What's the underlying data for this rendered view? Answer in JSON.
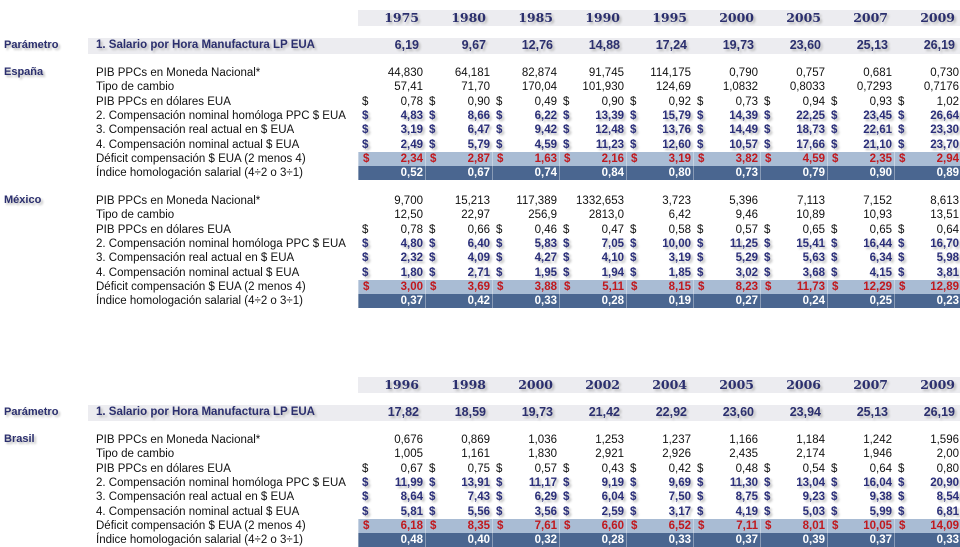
{
  "row_labels": [
    "PIB PPCs en Moneda Nacional*",
    "Tipo de cambio",
    "PIB PPCs en dólares EUA",
    "2. Compensación nominal homóloga PPC $ EUA",
    "3. Compensación real actual  en $ EUA",
    "4. Compensación nominal actual $ EUA",
    "Déficit compensación $ EUA (2 menos 4)",
    "Índice homologación salarial (4÷2 o 3÷1)"
  ],
  "currency_symbol": "$",
  "param_section": "Parámetro",
  "param_label": "1. Salario por Hora Manufactura LP EUA",
  "colors": {
    "title_blue": "#2b2f6e",
    "deficit_red": "#c0191e",
    "deficit_band": "#a9bcd4",
    "index_band": "#4a6690",
    "header_band": "#ececf0"
  },
  "tables": [
    {
      "years": [
        "1975",
        "1980",
        "1985",
        "1990",
        "1995",
        "2000",
        "2005",
        "2007",
        "2009"
      ],
      "salary": [
        "6,19",
        "9,67",
        "12,76",
        "14,88",
        "17,24",
        "19,73",
        "23,60",
        "25,13",
        "26,19"
      ],
      "countries": [
        {
          "name": "España",
          "rows": [
            [
              "44,830",
              "64,181",
              "82,874",
              "91,745",
              "114,175",
              "0,790",
              "0,757",
              "0,681",
              "0,730"
            ],
            [
              "57,41",
              "71,70",
              "170,04",
              "101,930",
              "124,69",
              "1,0832",
              "0,8033",
              "0,7293",
              "0,7176"
            ],
            [
              "0,78",
              "0,90",
              "0,49",
              "0,90",
              "0,92",
              "0,73",
              "0,94",
              "0,93",
              "1,02"
            ],
            [
              "4,83",
              "8,66",
              "6,22",
              "13,39",
              "15,79",
              "14,39",
              "22,25",
              "23,45",
              "26,64"
            ],
            [
              "3,19",
              "6,47",
              "9,42",
              "12,48",
              "13,76",
              "14,49",
              "18,73",
              "22,61",
              "23,30"
            ],
            [
              "2,49",
              "5,79",
              "4,59",
              "11,23",
              "12,60",
              "10,57",
              "17,66",
              "21,10",
              "23,70"
            ],
            [
              "2,34",
              "2,87",
              "1,63",
              "2,16",
              "3,19",
              "3,82",
              "4,59",
              "2,35",
              "2,94"
            ],
            [
              "0,52",
              "0,67",
              "0,74",
              "0,84",
              "0,80",
              "0,73",
              "0,79",
              "0,90",
              "0,89"
            ]
          ]
        },
        {
          "name": "México",
          "rows": [
            [
              "9,700",
              "15,213",
              "117,389",
              "1332,653",
              "3,723",
              "5,396",
              "7,113",
              "7,152",
              "8,613"
            ],
            [
              "12,50",
              "22,97",
              "256,9",
              "2813,0",
              "6,42",
              "9,46",
              "10,89",
              "10,93",
              "13,51"
            ],
            [
              "0,78",
              "0,66",
              "0,46",
              "0,47",
              "0,58",
              "0,57",
              "0,65",
              "0,65",
              "0,64"
            ],
            [
              "4,80",
              "6,40",
              "5,83",
              "7,05",
              "10,00",
              "11,25",
              "15,41",
              "16,44",
              "16,70"
            ],
            [
              "2,32",
              "4,09",
              "4,27",
              "4,10",
              "3,19",
              "5,29",
              "5,63",
              "6,34",
              "5,98"
            ],
            [
              "1,80",
              "2,71",
              "1,95",
              "1,94",
              "1,85",
              "3,02",
              "3,68",
              "4,15",
              "3,81"
            ],
            [
              "3,00",
              "3,69",
              "3,88",
              "5,11",
              "8,15",
              "8,23",
              "11,73",
              "12,29",
              "12,89"
            ],
            [
              "0,37",
              "0,42",
              "0,33",
              "0,28",
              "0,19",
              "0,27",
              "0,24",
              "0,25",
              "0,23"
            ]
          ]
        }
      ]
    },
    {
      "years": [
        "1996",
        "1998",
        "2000",
        "2002",
        "2004",
        "2005",
        "2006",
        "2007",
        "2009"
      ],
      "salary": [
        "17,82",
        "18,59",
        "19,73",
        "21,42",
        "22,92",
        "23,60",
        "23,94",
        "25,13",
        "26,19"
      ],
      "countries": [
        {
          "name": "Brasil",
          "rows": [
            [
              "0,676",
              "0,869",
              "1,036",
              "1,253",
              "1,237",
              "1,166",
              "1,184",
              "1,242",
              "1,596"
            ],
            [
              "1,005",
              "1,161",
              "1,830",
              "2,921",
              "2,926",
              "2,435",
              "2,174",
              "1,946",
              "2,00"
            ],
            [
              "0,67",
              "0,75",
              "0,57",
              "0,43",
              "0,42",
              "0,48",
              "0,54",
              "0,64",
              "0,80"
            ],
            [
              "11,99",
              "13,91",
              "11,17",
              "9,19",
              "9,69",
              "11,30",
              "13,04",
              "16,04",
              "20,90"
            ],
            [
              "8,64",
              "7,43",
              "6,29",
              "6,04",
              "7,50",
              "8,75",
              "9,23",
              "9,38",
              "8,54"
            ],
            [
              "5,81",
              "5,56",
              "3,56",
              "2,59",
              "3,17",
              "4,19",
              "5,03",
              "5,99",
              "6,81"
            ],
            [
              "6,18",
              "8,35",
              "7,61",
              "6,60",
              "6,52",
              "7,11",
              "8,01",
              "10,05",
              "14,09"
            ],
            [
              "0,48",
              "0,40",
              "0,32",
              "0,28",
              "0,33",
              "0,37",
              "0,39",
              "0,37",
              "0,33"
            ]
          ]
        }
      ]
    }
  ]
}
